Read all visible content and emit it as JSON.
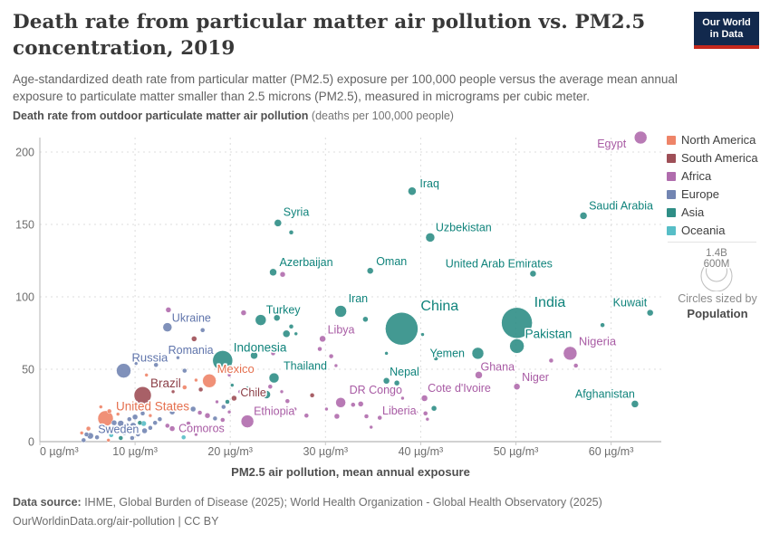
{
  "header": {
    "title": "Death rate from particular matter air pollution vs. PM2.5 concentration, 2019",
    "subtitle": "Age-standardized death rate from particular matter (PM2.5) exposure per 100,000 people versus the average mean annual exposure to particulate matter smaller than 2.5 microns (PM2.5), measured in micrograms per cubic meter.",
    "logo": {
      "line1": "Our World",
      "line2": "in Data",
      "bg_color": "#12294d",
      "accent_color": "#c5281c"
    }
  },
  "chart_data": {
    "type": "scatter",
    "title": "Death rate from particular matter air pollution vs. PM2.5 concentration, 2019",
    "y_axis_title_bold": "Death rate from outdoor particulate matter air pollution",
    "y_axis_title_normal": " (deaths per 100,000 people)",
    "x_axis_title": "PM2.5 air pollution, mean annual exposure",
    "xlim": [
      0,
      65
    ],
    "ylim": [
      0,
      215
    ],
    "grid": true,
    "legend_position": "right",
    "x_ticks": [
      {
        "v": 0,
        "label": "0 µg/m³"
      },
      {
        "v": 10,
        "label": "10 µg/m³"
      },
      {
        "v": 20,
        "label": "20 µg/m³"
      },
      {
        "v": 30,
        "label": "30 µg/m³"
      },
      {
        "v": 40,
        "label": "40 µg/m³"
      },
      {
        "v": 50,
        "label": "50 µg/m³"
      },
      {
        "v": 60,
        "label": "60 µg/m³"
      }
    ],
    "y_ticks": [
      {
        "v": 0,
        "label": "0"
      },
      {
        "v": 50,
        "label": "50"
      },
      {
        "v": 100,
        "label": "100"
      },
      {
        "v": 150,
        "label": "150"
      },
      {
        "v": 200,
        "label": "200"
      }
    ],
    "continents": {
      "north_america": {
        "label": "North America",
        "color": "#EE8468",
        "text": "#E5704F"
      },
      "south_america": {
        "label": "South America",
        "color": "#9E4F57",
        "text": "#8B3E46"
      },
      "africa": {
        "label": "Africa",
        "color": "#B06CAD",
        "text": "#A85BA4"
      },
      "europe": {
        "label": "Europe",
        "color": "#7285B2",
        "text": "#5F74AB"
      },
      "asia": {
        "label": "Asia",
        "color": "#2F8E86",
        "text": "#0F837B"
      },
      "oceania": {
        "label": "Oceania",
        "color": "#57BEC7",
        "text": "#2EAAB7"
      }
    },
    "legend_order": [
      "north_america",
      "south_america",
      "africa",
      "europe",
      "asia",
      "oceania"
    ],
    "size_legend": {
      "max_label": "1.4B",
      "mid_label": "600M",
      "caption_line1": "Circles sized by",
      "caption_line2": "Population"
    },
    "points": [
      [
        63.1,
        210,
        7,
        "africa",
        "Egypt",
        -9,
        11,
        "end",
        12.5
      ],
      [
        39.1,
        173,
        4.5,
        "asia",
        "Iraq",
        4,
        -4,
        "start",
        12.5
      ],
      [
        57.1,
        156,
        4,
        "asia",
        "Saudi Arabia",
        2,
        -7,
        "start",
        12.5
      ],
      [
        25.0,
        151,
        4,
        "asia",
        "Syria",
        2,
        -8,
        "start",
        12.5
      ],
      [
        41.0,
        141,
        5,
        "asia",
        "Uzbekistan",
        1,
        -7,
        "start",
        12.5
      ],
      [
        24.5,
        117,
        4,
        "asia",
        "Azerbaijan",
        3,
        -7,
        "start",
        12.5
      ],
      [
        34.7,
        118,
        3.5,
        "asia",
        "Oman",
        3,
        -6,
        "start",
        12.5
      ],
      [
        51.8,
        116,
        3.5,
        "asia",
        "United Arab Emirates",
        25,
        -7,
        "end",
        12.5
      ],
      [
        31.6,
        90,
        6.5,
        "asia",
        "Iran",
        2,
        -10,
        "start",
        12.5
      ],
      [
        38.0,
        78,
        18,
        "asia",
        "China",
        3,
        -20,
        "start",
        16
      ],
      [
        50.1,
        82,
        17,
        "asia",
        "India",
        2,
        -18,
        "start",
        16
      ],
      [
        64.1,
        89,
        3.5,
        "asia",
        "Kuwait",
        0,
        -7,
        "end",
        12.5
      ],
      [
        23.2,
        84,
        6,
        "asia",
        "Turkey",
        0,
        -7,
        "start",
        12.5
      ],
      [
        13.4,
        79,
        5,
        "europe",
        "Ukraine",
        0,
        -6,
        "start",
        12.5
      ],
      [
        29.7,
        71,
        3.5,
        "africa",
        "Libya",
        2,
        -6,
        "start",
        12.5
      ],
      [
        50.1,
        66,
        8,
        "asia",
        "Pakistan",
        1,
        -9,
        "start",
        13.5
      ],
      [
        12.9,
        58,
        3,
        "europe",
        "Romania",
        3,
        -4,
        "start",
        12.5
      ],
      [
        19.2,
        56,
        11,
        "asia",
        "Indonesia",
        1,
        -10,
        "start",
        13.5
      ],
      [
        55.7,
        61,
        7.5,
        "africa",
        "Nigeria",
        2,
        -9,
        "start",
        13
      ],
      [
        46.0,
        61,
        6.5,
        "asia",
        "Yemen",
        -8,
        4,
        "end",
        12.5
      ],
      [
        8.8,
        49,
        8,
        "europe",
        "Russia",
        1,
        -10,
        "start",
        13
      ],
      [
        17.8,
        42,
        7.5,
        "north_america",
        "Mexico",
        1,
        -9,
        "start",
        13
      ],
      [
        24.6,
        44,
        5.5,
        "asia",
        "Thailand",
        5,
        -9,
        "start",
        12.5
      ],
      [
        46.1,
        46,
        4,
        "africa",
        "Ghana",
        -2,
        -5,
        "start",
        12.5
      ],
      [
        50.1,
        38,
        3.5,
        "africa",
        "Niger",
        2,
        -6,
        "start",
        12.5
      ],
      [
        10.8,
        32,
        9.5,
        "south_america",
        "Brazil",
        -1,
        -9,
        "start",
        13.5
      ],
      [
        36.4,
        42,
        3.5,
        "asia",
        "Nepal",
        0,
        -6,
        "start",
        12.5
      ],
      [
        20.4,
        30,
        3,
        "south_america",
        "Chile",
        4,
        -2,
        "start",
        12.5
      ],
      [
        31.6,
        27,
        5.5,
        "africa",
        "DR Congo",
        4,
        -10,
        "start",
        12.5
      ],
      [
        40.4,
        30,
        3.5,
        "africa",
        "Cote d'Ivoire",
        0,
        -7,
        "start",
        12.5
      ],
      [
        6.9,
        16,
        8.5,
        "north_america",
        "United States",
        3,
        -9,
        "start",
        13.5
      ],
      [
        21.8,
        14,
        7,
        "africa",
        "Ethiopia",
        0,
        -7,
        "start",
        12.5
      ],
      [
        34.3,
        17.5,
        2.5,
        "africa",
        "Liberia",
        15,
        -2,
        "start",
        12.5
      ],
      [
        62.5,
        26,
        4,
        "asia",
        "Afghanistan",
        4,
        -7,
        "end",
        12.5
      ],
      [
        13.9,
        9,
        3,
        "africa",
        "Comoros",
        4,
        4,
        "start",
        12.5
      ],
      [
        5.3,
        4,
        3.5,
        "europe",
        "Sweden",
        5,
        -3,
        "start",
        12.5
      ],
      [
        4.6,
        1,
        2.5,
        "europe"
      ],
      [
        4.9,
        5,
        2.5,
        "europe"
      ],
      [
        6.0,
        3,
        2.5,
        "europe"
      ],
      [
        6.5,
        7.5,
        3,
        "europe"
      ],
      [
        5.1,
        9,
        2.5,
        "north_america"
      ],
      [
        4.4,
        6,
        2,
        "north_america"
      ],
      [
        7.5,
        4.5,
        2.5,
        "oceania"
      ],
      [
        7.8,
        13,
        3,
        "europe"
      ],
      [
        8.5,
        12.5,
        3.5,
        "europe"
      ],
      [
        9.1,
        11,
        3,
        "europe"
      ],
      [
        9.8,
        11,
        3.5,
        "europe"
      ],
      [
        10.5,
        13,
        2.5,
        "asia"
      ],
      [
        10.9,
        12.5,
        3,
        "oceania"
      ],
      [
        11.0,
        7.5,
        3,
        "europe"
      ],
      [
        8.9,
        6,
        2.5,
        "europe"
      ],
      [
        8.5,
        2.5,
        2.5,
        "asia"
      ],
      [
        7.2,
        1,
        2,
        "north_america"
      ],
      [
        9.7,
        2.5,
        2.5,
        "europe"
      ],
      [
        10.3,
        5,
        2.5,
        "europe"
      ],
      [
        11.6,
        9.5,
        2.5,
        "europe"
      ],
      [
        12.1,
        13,
        2.5,
        "europe"
      ],
      [
        12.6,
        15.5,
        2.5,
        "europe"
      ],
      [
        11.6,
        18,
        2,
        "north_america"
      ],
      [
        10.8,
        19.5,
        2.5,
        "europe"
      ],
      [
        10.0,
        17,
        3,
        "europe"
      ],
      [
        9.4,
        15.5,
        2.5,
        "europe"
      ],
      [
        8.2,
        19,
        2,
        "north_america"
      ],
      [
        7.3,
        21,
        2.5,
        "north_america"
      ],
      [
        6.4,
        24,
        2,
        "north_america"
      ],
      [
        12.5,
        23,
        3,
        "europe"
      ],
      [
        13.2,
        26,
        2.5,
        "europe"
      ],
      [
        13.9,
        20.5,
        3,
        "europe"
      ],
      [
        14.7,
        23,
        2,
        "asia"
      ],
      [
        15.3,
        25.5,
        2.5,
        "europe"
      ],
      [
        16.1,
        22.5,
        3,
        "europe"
      ],
      [
        16.8,
        20,
        2.5,
        "africa"
      ],
      [
        17.6,
        18,
        3,
        "africa"
      ],
      [
        18.4,
        16,
        2.5,
        "europe"
      ],
      [
        13.4,
        11,
        2.5,
        "africa"
      ],
      [
        15.6,
        12.5,
        2.5,
        "africa"
      ],
      [
        15.1,
        3,
        2.5,
        "oceania"
      ],
      [
        16.4,
        5,
        2,
        "africa"
      ],
      [
        19.2,
        15,
        2.5,
        "africa"
      ],
      [
        19.9,
        20.5,
        2,
        "africa"
      ],
      [
        19.3,
        24,
        2.5,
        "europe"
      ],
      [
        18.6,
        27.5,
        2,
        "africa"
      ],
      [
        19.7,
        27.5,
        2.5,
        "asia"
      ],
      [
        13.5,
        91,
        3,
        "africa"
      ],
      [
        21.4,
        89,
        3,
        "africa"
      ],
      [
        24.9,
        85.5,
        3.5,
        "asia"
      ],
      [
        26.4,
        79.5,
        2.5,
        "asia"
      ],
      [
        26.9,
        74.5,
        2,
        "asia"
      ],
      [
        25.9,
        74.5,
        4,
        "asia"
      ],
      [
        17.1,
        77,
        2.5,
        "europe"
      ],
      [
        16.2,
        71,
        3,
        "south_america"
      ],
      [
        14.5,
        58,
        2,
        "europe"
      ],
      [
        22.5,
        59.5,
        4,
        "asia"
      ],
      [
        24.5,
        61,
        2.5,
        "africa"
      ],
      [
        20.7,
        50.5,
        2,
        "asia"
      ],
      [
        19.9,
        46,
        2,
        "africa"
      ],
      [
        24.2,
        38,
        2.5,
        "africa"
      ],
      [
        23.8,
        32.5,
        4.5,
        "asia"
      ],
      [
        21.8,
        37,
        2,
        "asia"
      ],
      [
        25.4,
        34.5,
        2,
        "africa"
      ],
      [
        26.0,
        28,
        2.5,
        "africa"
      ],
      [
        26.8,
        22.5,
        2,
        "africa"
      ],
      [
        12.2,
        53,
        2.5,
        "europe"
      ],
      [
        11.2,
        46,
        2,
        "north_america"
      ],
      [
        10.1,
        54,
        2,
        "europe"
      ],
      [
        15.2,
        49,
        2.5,
        "europe"
      ],
      [
        16.4,
        42.5,
        2,
        "north_america"
      ],
      [
        16.9,
        36,
        2.5,
        "south_america"
      ],
      [
        15.2,
        37.5,
        2.5,
        "north_america"
      ],
      [
        14.0,
        34.5,
        2,
        "south_america"
      ],
      [
        12.7,
        38,
        2.5,
        "north_america"
      ],
      [
        20.2,
        39,
        2,
        "asia"
      ],
      [
        21.0,
        34.5,
        2,
        "africa"
      ],
      [
        34.2,
        84.5,
        3,
        "asia"
      ],
      [
        36.4,
        61,
        2,
        "asia"
      ],
      [
        40.2,
        74,
        2,
        "asia"
      ],
      [
        29.4,
        64,
        2.5,
        "africa"
      ],
      [
        30.6,
        59,
        2.5,
        "africa"
      ],
      [
        31.1,
        52.5,
        2,
        "africa"
      ],
      [
        28.6,
        32,
        2.5,
        "south_america"
      ],
      [
        28.0,
        18,
        2.5,
        "africa"
      ],
      [
        30.1,
        22.5,
        2,
        "africa"
      ],
      [
        31.2,
        17.5,
        3,
        "africa"
      ],
      [
        32.9,
        25.5,
        2.5,
        "africa"
      ],
      [
        33.7,
        26,
        3,
        "africa"
      ],
      [
        35.7,
        16.5,
        2.5,
        "africa"
      ],
      [
        39.5,
        20,
        2.5,
        "africa"
      ],
      [
        40.5,
        19.5,
        2.5,
        "africa"
      ],
      [
        41.4,
        23,
        3,
        "asia"
      ],
      [
        40.7,
        15.5,
        2,
        "africa"
      ],
      [
        37.5,
        40.5,
        3,
        "asia"
      ],
      [
        38.1,
        30,
        2,
        "africa"
      ],
      [
        37.0,
        19.5,
        2.5,
        "asia"
      ],
      [
        34.8,
        10,
        2,
        "africa"
      ],
      [
        41.6,
        57.5,
        2.5,
        "asia"
      ],
      [
        53.7,
        56,
        2.5,
        "africa"
      ],
      [
        56.3,
        52.5,
        2.5,
        "africa"
      ],
      [
        59.1,
        80.5,
        2.5,
        "asia"
      ],
      [
        25.5,
        115.5,
        3,
        "africa"
      ],
      [
        26.4,
        144.5,
        2.5,
        "asia"
      ]
    ]
  },
  "footer": {
    "source_label": "Data source:",
    "source_text": " IHME, Global Burden of Disease (2025); World Health Organization - Global Health Observatory (2025)",
    "link": "OurWorldinData.org/air-pollution",
    "suffix": " | CC BY"
  }
}
